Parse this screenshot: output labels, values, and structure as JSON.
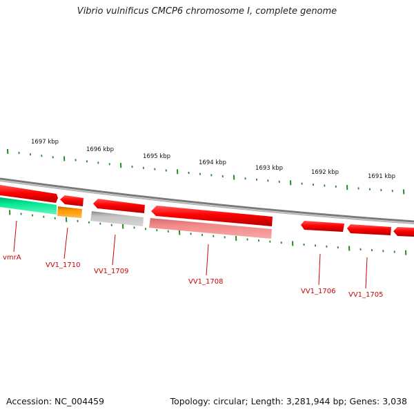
{
  "title": "Vibrio vulnificus CMCP6 chromosome I, complete genome",
  "accession": "Accession: NC_004459",
  "summary": "Topology: circular; Length: 3,281,944 bp; Genes: 3,038",
  "colors": {
    "backbone": "#888888",
    "gene_red": "#ff0000",
    "gene_pink": "#f08080",
    "gene_grey": "#bbbbbb",
    "gene_orange": "#ff9900",
    "gene_green": "#00e08a",
    "tick": "#228b22",
    "label": "#cc0000"
  },
  "kbp_ticks": [
    "1697 kbp",
    "1696 kbp",
    "1695 kbp",
    "1694 kbp",
    "1693 kbp",
    "1692 kbp",
    "1691 kbp"
  ],
  "gene_labels": [
    "vmrA",
    "VV1_1710",
    "VV1_1709",
    "VV1_1708",
    "VV1_1706",
    "VV1_1705"
  ]
}
